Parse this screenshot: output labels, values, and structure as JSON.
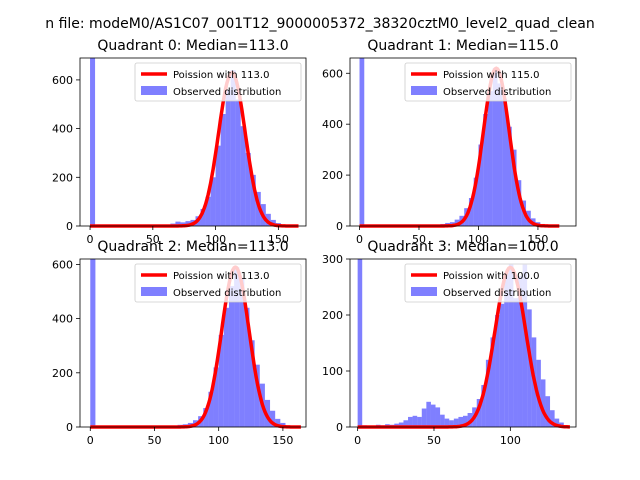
{
  "suptitle": "n file: modeM0/AS1C07_001T12_9000005372_38320cztM0_level2_quad_clean",
  "colors": {
    "hist": "#0000ff",
    "hist_opacity": 0.5,
    "poisson": "#ff0000"
  },
  "chart_data": [
    {
      "type": "bar",
      "title": "Quadrant 0: Median=113.0",
      "legend": [
        "Poission with 113.0",
        "Observed distribution"
      ],
      "legend_position": "top-right",
      "xlim": [
        -8,
        172
      ],
      "ylim": [
        0,
        690
      ],
      "xticks": [
        0,
        50,
        100,
        150
      ],
      "yticks": [
        0,
        200,
        400,
        600
      ],
      "poisson_mean": 113.0,
      "poisson_peak": 630,
      "bin_width": 4,
      "bins": [
        [
          0,
          690
        ],
        [
          64,
          10
        ],
        [
          68,
          18
        ],
        [
          72,
          15
        ],
        [
          76,
          20
        ],
        [
          80,
          25
        ],
        [
          84,
          40
        ],
        [
          88,
          70
        ],
        [
          92,
          120
        ],
        [
          96,
          200
        ],
        [
          100,
          330
        ],
        [
          104,
          460
        ],
        [
          108,
          560
        ],
        [
          112,
          640
        ],
        [
          116,
          520
        ],
        [
          120,
          410
        ],
        [
          124,
          300
        ],
        [
          128,
          210
        ],
        [
          132,
          140
        ],
        [
          136,
          90
        ],
        [
          140,
          50
        ],
        [
          144,
          25
        ],
        [
          148,
          12
        ],
        [
          152,
          5
        ]
      ]
    },
    {
      "type": "bar",
      "title": "Quadrant 1: Median=115.0",
      "legend": [
        "Poission with 115.0",
        "Observed distribution"
      ],
      "legend_position": "top-right",
      "xlim": [
        -8,
        182
      ],
      "ylim": [
        0,
        660
      ],
      "xticks": [
        0,
        50,
        100,
        150
      ],
      "yticks": [
        0,
        200,
        400,
        600
      ],
      "poisson_mean": 115.0,
      "poisson_peak": 620,
      "bin_width": 4,
      "bins": [
        [
          0,
          660
        ],
        [
          64,
          5
        ],
        [
          68,
          8
        ],
        [
          72,
          12
        ],
        [
          76,
          15
        ],
        [
          80,
          25
        ],
        [
          84,
          40
        ],
        [
          88,
          70
        ],
        [
          92,
          110
        ],
        [
          96,
          190
        ],
        [
          100,
          320
        ],
        [
          104,
          440
        ],
        [
          108,
          530
        ],
        [
          112,
          620
        ],
        [
          116,
          560
        ],
        [
          120,
          500
        ],
        [
          124,
          390
        ],
        [
          128,
          300
        ],
        [
          132,
          180
        ],
        [
          136,
          100
        ],
        [
          140,
          60
        ],
        [
          144,
          30
        ],
        [
          148,
          15
        ],
        [
          152,
          8
        ],
        [
          156,
          4
        ]
      ]
    },
    {
      "type": "bar",
      "title": "Quadrant 2: Median=113.0",
      "legend": [
        "Poission with 113.0",
        "Observed distribution"
      ],
      "legend_position": "top-right",
      "xlim": [
        -8,
        168
      ],
      "ylim": [
        0,
        620
      ],
      "xticks": [
        0,
        50,
        100,
        150
      ],
      "yticks": [
        0,
        200,
        400,
        600
      ],
      "poisson_mean": 113.0,
      "poisson_peak": 590,
      "bin_width": 4,
      "bins": [
        [
          0,
          620
        ],
        [
          64,
          5
        ],
        [
          68,
          8
        ],
        [
          72,
          10
        ],
        [
          76,
          15
        ],
        [
          80,
          25
        ],
        [
          84,
          40
        ],
        [
          88,
          70
        ],
        [
          92,
          130
        ],
        [
          96,
          220
        ],
        [
          100,
          340
        ],
        [
          104,
          440
        ],
        [
          108,
          520
        ],
        [
          112,
          590
        ],
        [
          116,
          550
        ],
        [
          120,
          440
        ],
        [
          124,
          320
        ],
        [
          128,
          230
        ],
        [
          132,
          160
        ],
        [
          136,
          100
        ],
        [
          140,
          60
        ],
        [
          144,
          30
        ],
        [
          148,
          15
        ],
        [
          152,
          6
        ],
        [
          156,
          3
        ]
      ]
    },
    {
      "type": "bar",
      "title": "Quadrant 3: Median=100.0",
      "legend": [
        "Poission with 100.0",
        "Observed distribution"
      ],
      "legend_position": "top-right",
      "xlim": [
        -5,
        143
      ],
      "ylim": [
        0,
        300
      ],
      "xticks": [
        0,
        50,
        100
      ],
      "yticks": [
        0,
        100,
        200,
        300
      ],
      "poisson_mean": 100.0,
      "poisson_peak": 285,
      "bin_width": 3,
      "bins": [
        [
          0,
          300
        ],
        [
          3,
          3
        ],
        [
          12,
          4
        ],
        [
          15,
          3
        ],
        [
          18,
          5
        ],
        [
          21,
          4
        ],
        [
          24,
          6
        ],
        [
          27,
          8
        ],
        [
          30,
          12
        ],
        [
          33,
          18
        ],
        [
          36,
          20
        ],
        [
          39,
          18
        ],
        [
          42,
          33
        ],
        [
          45,
          45
        ],
        [
          48,
          40
        ],
        [
          51,
          35
        ],
        [
          54,
          22
        ],
        [
          57,
          15
        ],
        [
          60,
          12
        ],
        [
          63,
          15
        ],
        [
          66,
          18
        ],
        [
          69,
          20
        ],
        [
          72,
          25
        ],
        [
          75,
          35
        ],
        [
          78,
          50
        ],
        [
          81,
          75
        ],
        [
          84,
          120
        ],
        [
          87,
          160
        ],
        [
          90,
          200
        ],
        [
          93,
          220
        ],
        [
          96,
          275
        ],
        [
          99,
          290
        ],
        [
          102,
          230
        ],
        [
          105,
          270
        ],
        [
          108,
          290
        ],
        [
          111,
          210
        ],
        [
          114,
          160
        ],
        [
          117,
          120
        ],
        [
          120,
          85
        ],
        [
          123,
          55
        ],
        [
          126,
          30
        ],
        [
          129,
          15
        ],
        [
          132,
          8
        ],
        [
          135,
          3
        ]
      ]
    }
  ]
}
